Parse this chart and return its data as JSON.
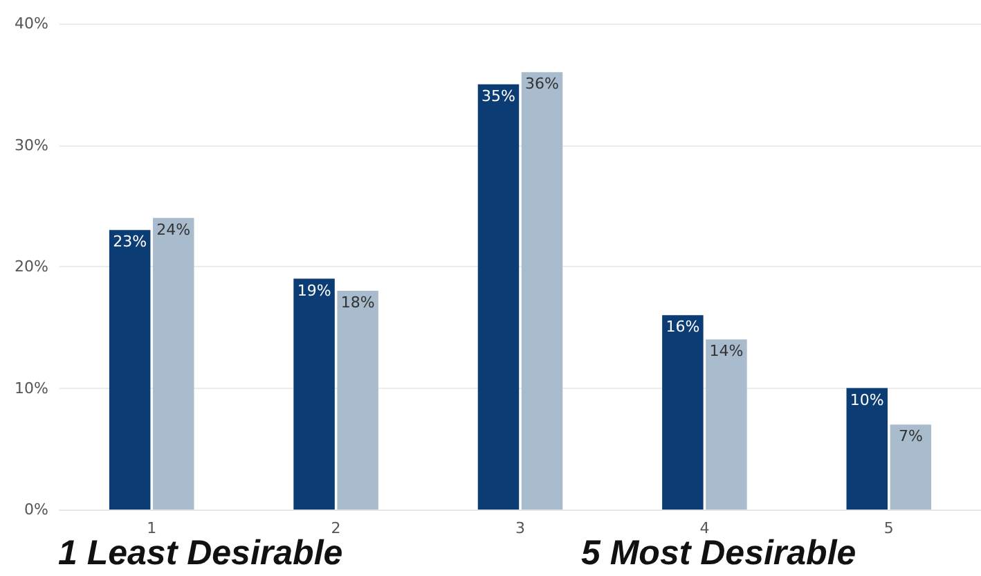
{
  "chart_data": {
    "type": "bar",
    "categories": [
      "1",
      "2",
      "3",
      "4",
      "5"
    ],
    "series": [
      {
        "color": "#0b3c73",
        "values": [
          23,
          19,
          35,
          16,
          10
        ],
        "value_labels": [
          "23%",
          "19%",
          "35%",
          "16%",
          "10%"
        ]
      },
      {
        "color": "#a8bccd",
        "values": [
          24,
          18,
          36,
          14,
          7
        ],
        "value_labels": [
          "24%",
          "18%",
          "36%",
          "14%",
          "7%"
        ]
      }
    ],
    "ylim": [
      0,
      40
    ],
    "yticks": [
      {
        "value": 0,
        "label": "0%"
      },
      {
        "value": 10,
        "label": "10%"
      },
      {
        "value": 20,
        "label": "20%"
      },
      {
        "value": 30,
        "label": "30%"
      },
      {
        "value": 40,
        "label": "40%"
      }
    ],
    "grid": "y",
    "annotations": [
      "1 Least Desirable",
      "5 Most Desirable"
    ]
  }
}
